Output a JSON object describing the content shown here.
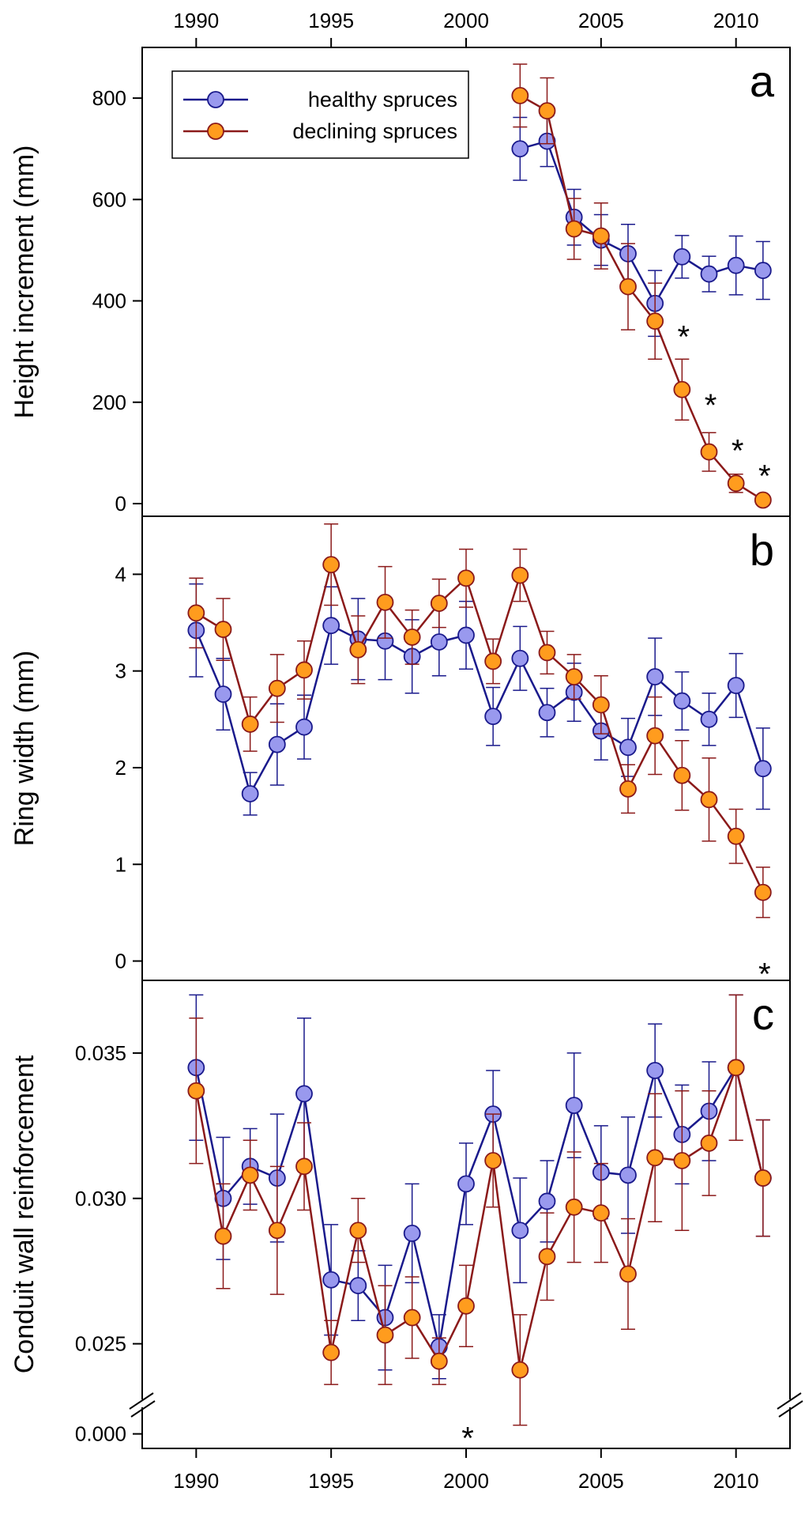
{
  "chart_data": {
    "type": "line",
    "x_axis": {
      "ticks": [
        1990,
        1995,
        2000,
        2005,
        2010
      ],
      "tick_labels": [
        "1990",
        "1995",
        "2000",
        "2005",
        "2010"
      ],
      "xlim": [
        1988,
        2012
      ]
    },
    "legend": {
      "placement": "top-left",
      "entries": [
        "healthy spruces",
        "declining spruces"
      ]
    },
    "colors": {
      "healthy_line": "#1a1a8c",
      "healthy_fill": "#9999ee",
      "declining_line": "#8b1a1a",
      "declining_fill": "#ff9c1e"
    },
    "panels": [
      {
        "letter": "a",
        "ylabel": "Height increment (mm)",
        "ylim": [
          -25,
          900
        ],
        "yticks": [
          0,
          200,
          400,
          600,
          800
        ],
        "ytick_labels": [
          "0",
          "200",
          "400",
          "600",
          "800"
        ],
        "series": [
          {
            "name": "healthy spruces",
            "x": [
              2002,
              2003,
              2004,
              2005,
              2006,
              2007,
              2008,
              2009,
              2010,
              2011
            ],
            "y": [
              700,
              715,
              565,
              520,
              493,
              395,
              487,
              453,
              470,
              460
            ],
            "err": [
              62,
              50,
              55,
              50,
              58,
              65,
              42,
              35,
              58,
              57
            ]
          },
          {
            "name": "declining spruces",
            "x": [
              2002,
              2003,
              2004,
              2005,
              2006,
              2007,
              2008,
              2009,
              2010,
              2011
            ],
            "y": [
              805,
              775,
              542,
              528,
              428,
              360,
              225,
              102,
              40,
              7
            ],
            "err": [
              62,
              65,
              60,
              65,
              85,
              75,
              60,
              38,
              18,
              5
            ]
          }
        ],
        "significance": [
          {
            "x": 2008,
            "y": 355,
            "label": "*"
          },
          {
            "x": 2009,
            "y": 220,
            "label": "*"
          },
          {
            "x": 2010,
            "y": 130,
            "label": "*"
          },
          {
            "x": 2011,
            "y": 80,
            "label": "*"
          }
        ]
      },
      {
        "letter": "b",
        "ylabel": "Ring width (mm)",
        "ylim": [
          -0.2,
          4.6
        ],
        "yticks": [
          0,
          1,
          2,
          3,
          4
        ],
        "ytick_labels": [
          "0",
          "1",
          "2",
          "3",
          "4"
        ],
        "series": [
          {
            "name": "healthy spruces",
            "x": [
              1990,
              1991,
              1992,
              1993,
              1994,
              1995,
              1996,
              1997,
              1998,
              1999,
              2000,
              2001,
              2002,
              2003,
              2004,
              2005,
              2006,
              2007,
              2008,
              2009,
              2010,
              2011
            ],
            "y": [
              3.42,
              2.76,
              1.73,
              2.24,
              2.42,
              3.47,
              3.33,
              3.31,
              3.15,
              3.3,
              3.37,
              2.53,
              3.13,
              2.57,
              2.78,
              2.38,
              2.21,
              2.94,
              2.69,
              2.5,
              2.85,
              1.99
            ],
            "err": [
              0.48,
              0.37,
              0.22,
              0.42,
              0.33,
              0.4,
              0.42,
              0.4,
              0.38,
              0.35,
              0.35,
              0.3,
              0.33,
              0.25,
              0.3,
              0.3,
              0.3,
              0.4,
              0.3,
              0.27,
              0.33,
              0.42
            ]
          },
          {
            "name": "declining spruces",
            "x": [
              1990,
              1991,
              1992,
              1993,
              1994,
              1995,
              1996,
              1997,
              1998,
              1999,
              2000,
              2001,
              2002,
              2003,
              2004,
              2005,
              2006,
              2007,
              2008,
              2009,
              2010,
              2011
            ],
            "y": [
              3.6,
              3.43,
              2.45,
              2.82,
              3.01,
              4.1,
              3.22,
              3.71,
              3.35,
              3.7,
              3.96,
              3.1,
              3.99,
              3.19,
              2.94,
              2.65,
              1.78,
              2.33,
              1.92,
              1.67,
              1.29,
              0.71
            ],
            "err": [
              0.36,
              0.32,
              0.28,
              0.35,
              0.3,
              0.42,
              0.35,
              0.37,
              0.28,
              0.25,
              0.3,
              0.23,
              0.27,
              0.22,
              0.23,
              0.3,
              0.25,
              0.4,
              0.36,
              0.43,
              0.28,
              0.26
            ]
          }
        ],
        "significance": [
          {
            "x": 2011,
            "y": 0.0,
            "label": "*"
          }
        ]
      },
      {
        "letter": "c",
        "ylabel": "Conduit wall reinforcement",
        "ylim": [
          0.0214,
          0.0375
        ],
        "yticks": [
          0.0219,
          0.025,
          0.03,
          0.035
        ],
        "ytick_labels": [
          "0.000",
          "0.025",
          "0.030",
          "0.035"
        ],
        "axis_break": true,
        "series": [
          {
            "name": "healthy spruces",
            "x": [
              1990,
              1991,
              1992,
              1993,
              1994,
              1995,
              1996,
              1997,
              1998,
              1999,
              2000,
              2001,
              2002,
              2003,
              2004,
              2005,
              2006,
              2007,
              2008,
              2009,
              2010,
              2011
            ],
            "y": [
              0.0345,
              0.03,
              0.0311,
              0.0307,
              0.0336,
              0.0272,
              0.027,
              0.0259,
              0.0288,
              0.0249,
              0.0305,
              0.0329,
              0.0289,
              0.0299,
              0.0332,
              0.0309,
              0.0308,
              0.0344,
              0.0322,
              0.033,
              0.0345,
              0.0307
            ],
            "err": [
              0.0025,
              0.0021,
              0.0013,
              0.0022,
              0.0026,
              0.0019,
              0.0012,
              0.0018,
              0.0017,
              0.0011,
              0.0014,
              0.0015,
              0.0018,
              0.0014,
              0.0018,
              0.0016,
              0.002,
              0.0016,
              0.0017,
              0.0017,
              0.0025,
              0.002
            ]
          },
          {
            "name": "declining spruces",
            "x": [
              1990,
              1991,
              1992,
              1993,
              1994,
              1995,
              1996,
              1997,
              1998,
              1999,
              2000,
              2001,
              2002,
              2003,
              2004,
              2005,
              2006,
              2007,
              2008,
              2009,
              2010,
              2011
            ],
            "y": [
              0.0337,
              0.0287,
              0.0308,
              0.0289,
              0.0311,
              0.0247,
              0.0289,
              0.0253,
              0.0259,
              0.0244,
              0.0263,
              0.0313,
              0.0241,
              0.028,
              0.0297,
              0.0295,
              0.0274,
              0.0314,
              0.0313,
              0.0319,
              0.0345,
              0.0307
            ],
            "err": [
              0.0025,
              0.0018,
              0.0012,
              0.0022,
              0.0015,
              0.0011,
              0.0011,
              0.0017,
              0.0014,
              0.0008,
              0.0014,
              0.0016,
              0.0019,
              0.0015,
              0.0019,
              0.0017,
              0.0019,
              0.0022,
              0.0024,
              0.0018,
              0.0025,
              0.002
            ]
          }
        ],
        "significance": [
          {
            "x": 2000,
            "y": 0.0222,
            "label": "*"
          }
        ]
      }
    ]
  }
}
